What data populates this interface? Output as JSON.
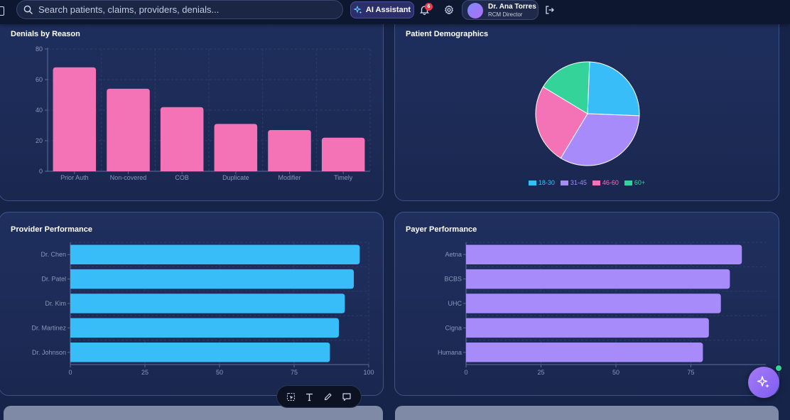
{
  "topbar": {
    "search_placeholder": "Search patients, claims, providers, denials...",
    "ai_button_label": "AI Assistant",
    "notification_count": "6",
    "user_name": "Dr. Ana Torres",
    "user_role": "RCM Director"
  },
  "colors": {
    "pink": "#f472b6",
    "sky": "#38bdf8",
    "violet": "#a78bfa",
    "green": "#34d399"
  },
  "icons": {
    "search": "search-icon",
    "ai": "sparkles-icon",
    "bell": "bell-icon",
    "gear": "gear-icon",
    "logout": "logout-icon",
    "fab": "sparkles-icon"
  },
  "cards": {
    "denials_title": "Denials by Reason",
    "demographics_title": "Patient Demographics",
    "provider_title": "Provider Performance",
    "payer_title": "Payer Performance"
  },
  "chart_data": [
    {
      "type": "bar",
      "title": "Denials by Reason",
      "categories": [
        "Prior Auth",
        "Non-covered",
        "COB",
        "Duplicate",
        "Modifier",
        "Timely"
      ],
      "values": [
        68,
        54,
        42,
        31,
        27,
        22
      ],
      "ylim": [
        0,
        80
      ],
      "yticks": [
        0,
        20,
        40,
        60,
        80
      ],
      "grid": true
    },
    {
      "type": "pie",
      "title": "Patient Demographics",
      "labels": [
        "18-30",
        "31-45",
        "46-60",
        "60+"
      ],
      "values": [
        25,
        33,
        25,
        17
      ],
      "legend": "bottom"
    },
    {
      "type": "bar",
      "orientation": "horizontal",
      "title": "Provider Performance",
      "categories": [
        "Dr. Chen",
        "Dr. Patel",
        "Dr. Kim",
        "Dr. Martinez",
        "Dr. Johnson"
      ],
      "values": [
        97,
        95,
        92,
        90,
        87
      ],
      "xlim": [
        0,
        100
      ],
      "xticks": [
        0,
        25,
        50,
        75,
        100
      ],
      "grid": true
    },
    {
      "type": "bar",
      "orientation": "horizontal",
      "title": "Payer Performance",
      "categories": [
        "Aetna",
        "BCBS",
        "UHC",
        "Cigna",
        "Humana"
      ],
      "values": [
        92,
        88,
        85,
        81,
        79
      ],
      "xlim": [
        0,
        100
      ],
      "xticks": [
        0,
        25,
        50,
        75
      ],
      "grid": true
    }
  ]
}
